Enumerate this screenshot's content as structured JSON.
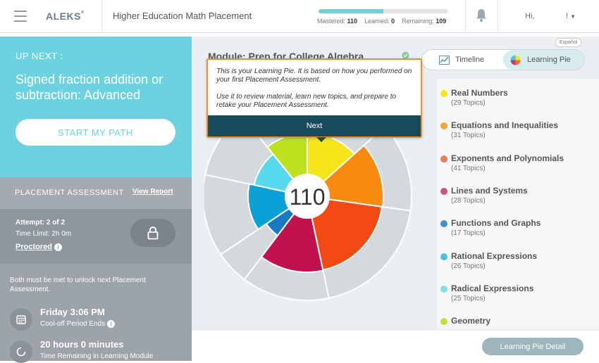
{
  "header": {
    "logo": "ALEKS",
    "course": "Higher Education Math Placement",
    "mastered_label": "Mastered:",
    "mastered": "110",
    "learned_label": "Learned:",
    "learned": "0",
    "remaining_label": "Remaining:",
    "remaining": "109",
    "progress_fraction": 0.502,
    "greeting": "Hi,",
    "user": "!"
  },
  "upnext": {
    "label": "UP NEXT :",
    "topic": "Signed fraction addition or subtraction: Advanced",
    "start_label": "START MY PATH"
  },
  "placement": {
    "title": "PLACEMENT ASSESSMENT",
    "report_link": "View Report",
    "attempt": "Attempt: 2 of 2",
    "time_limit": "Time Limit: 2h 0m",
    "proctored": "Proctored",
    "note": "Both must be met to unlock next Placement Assessment.",
    "conditions": [
      {
        "main": "Friday 3:06 PM",
        "sub": "Cool-off Period Ends",
        "icon": "calendar-icon"
      },
      {
        "main": "20 hours 0 minutes",
        "sub": "Time Remaining in Learning Module",
        "icon": "clock-icon"
      }
    ]
  },
  "main": {
    "module_title": "Module: Prep for College Algebra",
    "espanol": "Español",
    "toggle": {
      "timeline": "Timeline",
      "learning_pie": "Learning Pie"
    },
    "pie_center": "110",
    "detail_button": "Learning Pie Detail"
  },
  "tooltip": {
    "line1": "This is your Learning Pie. It is based on how you performed on your first Placement Assessment.",
    "line2": "Use it to review material, learn new topics, and prepare to retake your Placement Assessment.",
    "next": "Next"
  },
  "legend": [
    {
      "name": "Real Numbers",
      "count": "(29 Topics)",
      "color": "#f5e51a"
    },
    {
      "name": "Equations and Inequalities",
      "count": "(31 Topics)",
      "color": "#f7a338"
    },
    {
      "name": "Exponents and Polynomials",
      "count": "(41 Topics)",
      "color": "#f2785a"
    },
    {
      "name": "Lines and Systems",
      "count": "(28 Topics)",
      "color": "#d0517c"
    },
    {
      "name": "Functions and Graphs",
      "count": "(17 Topics)",
      "color": "#3f93c6"
    },
    {
      "name": "Rational Expressions",
      "count": "(26 Topics)",
      "color": "#4fc1e0"
    },
    {
      "name": "Radical Expressions",
      "count": "(25 Topics)",
      "color": "#7fe0ef"
    },
    {
      "name": "Geometry",
      "count": "",
      "color": "#c6dd3c"
    }
  ]
}
